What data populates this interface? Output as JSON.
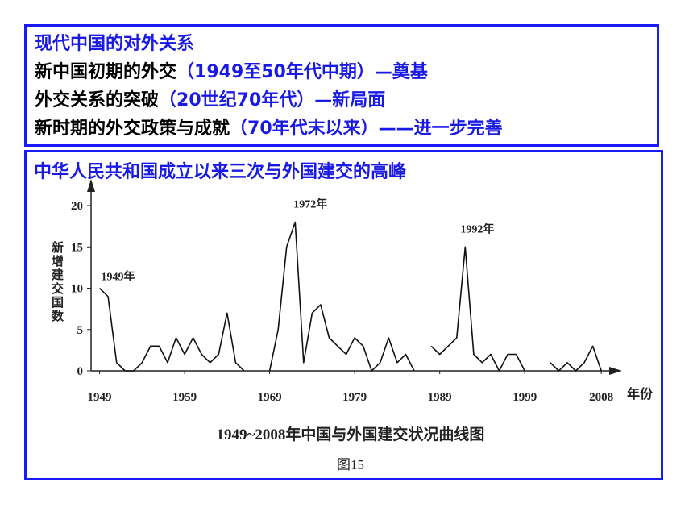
{
  "header": {
    "title": "现代中国的对外关系",
    "lines": [
      {
        "topic": "新中国初期的外交",
        "detail": "（1949至50年代中期）—奠基"
      },
      {
        "topic": "外交关系的突破",
        "detail": "（20世纪70年代）—新局面"
      },
      {
        "topic": "新时期的外交政策与成就",
        "detail": "（70年代末以来）——进一步完善"
      }
    ]
  },
  "chart_data": {
    "type": "line",
    "heading": "中华人民共和国成立以来三次与外国建交的高峰",
    "title": "1949~2008年中国与外国建交状况曲线图",
    "figure_label": "图15",
    "y_label": "新增建交国数",
    "x_label": "年份",
    "annotations": [
      "1949年",
      "1972年",
      "1992年"
    ],
    "x": [
      1949,
      1950,
      1951,
      1952,
      1953,
      1954,
      1955,
      1956,
      1957,
      1958,
      1959,
      1960,
      1961,
      1962,
      1963,
      1964,
      1965,
      1966,
      1967,
      1968,
      1969,
      1970,
      1971,
      1972,
      1973,
      1974,
      1975,
      1976,
      1977,
      1978,
      1979,
      1980,
      1981,
      1982,
      1983,
      1984,
      1985,
      1986,
      1987,
      1988,
      1989,
      1990,
      1991,
      1992,
      1993,
      1994,
      1995,
      1996,
      1997,
      1998,
      1999,
      2000,
      2001,
      2002,
      2003,
      2004,
      2005,
      2006,
      2007,
      2008
    ],
    "series": [
      {
        "name": "新增建交国数",
        "color": "#111111",
        "values": [
          10,
          9,
          1,
          0,
          0,
          1,
          3,
          3,
          1,
          4,
          2,
          4,
          2,
          1,
          2,
          7,
          1,
          0,
          null,
          null,
          0,
          5,
          15,
          18,
          1,
          7,
          8,
          4,
          3,
          2,
          4,
          3,
          0,
          1,
          4,
          1,
          2,
          0,
          null,
          3,
          2,
          3,
          4,
          15,
          2,
          1,
          2,
          0,
          2,
          2,
          0,
          null,
          null,
          1,
          0,
          1,
          0,
          1,
          3,
          0
        ]
      }
    ],
    "xlim": [
      1948,
      2009.5
    ],
    "xticks": [
      1949,
      1959,
      1969,
      1979,
      1989,
      1999,
      2008
    ],
    "ylim": [
      0,
      22
    ],
    "yticks": [
      0,
      5,
      10,
      15,
      20
    ]
  }
}
